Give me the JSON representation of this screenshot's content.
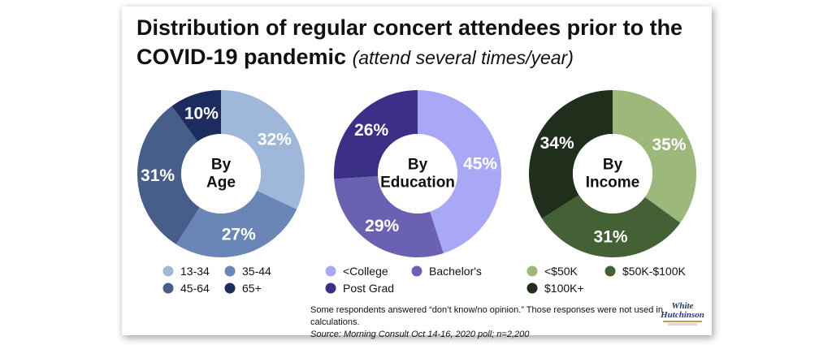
{
  "title": {
    "main": "Distribution of regular concert attendees prior to the COVID-19 pandemic",
    "sub": "(attend several times/year)"
  },
  "chart_data": [
    {
      "type": "pie",
      "center_label": [
        "By",
        "Age"
      ],
      "categories": [
        "13-34",
        "35-44",
        "45-64",
        "65+"
      ],
      "values": [
        32,
        27,
        31,
        10
      ],
      "labels": [
        "32%",
        "27%",
        "31%",
        "10%"
      ],
      "colors": [
        "#9fb7d8",
        "#6a86b6",
        "#475e8b",
        "#1c2c5e"
      ],
      "legend_position": "bottom"
    },
    {
      "type": "pie",
      "center_label": [
        "By",
        "Education"
      ],
      "categories": [
        "<College",
        "Bachelor's",
        "Post Grad"
      ],
      "values": [
        45,
        29,
        26
      ],
      "labels": [
        "45%",
        "29%",
        "26%"
      ],
      "colors": [
        "#a9a8f6",
        "#6b61b2",
        "#3c2f87"
      ],
      "legend_position": "bottom"
    },
    {
      "type": "pie",
      "center_label": [
        "By",
        "Income"
      ],
      "categories": [
        "<$50K",
        "$50K-$100K",
        "$100K+"
      ],
      "values": [
        35,
        31,
        34
      ],
      "labels": [
        "35%",
        "31%",
        "34%"
      ],
      "colors": [
        "#9cb87a",
        "#436134",
        "#1f2f1c"
      ],
      "legend_position": "bottom"
    }
  ],
  "footnote": {
    "note": "Some respondents answered “don’t know/no opinion.” Those responses were not used in calculations.",
    "source": "Source: Morning Consult Oct 14-16, 2020 poll; n=2,200"
  },
  "logo": {
    "line1": "White",
    "line2": "Hutchinson"
  }
}
